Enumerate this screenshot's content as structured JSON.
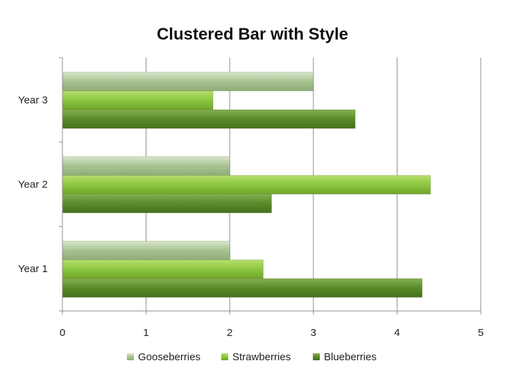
{
  "chart_data": {
    "type": "bar",
    "orientation": "horizontal",
    "title": "Clustered Bar with Style",
    "xlabel": "",
    "ylabel": "",
    "categories": [
      "Year 1",
      "Year 2",
      "Year 3"
    ],
    "xlim": [
      0,
      5
    ],
    "x_ticks": [
      "0",
      "1",
      "2",
      "3",
      "4",
      "5"
    ],
    "grid": true,
    "legend_position": "bottom",
    "series": [
      {
        "name": "Gooseberries",
        "values": [
          2,
          2,
          3
        ],
        "color": "#a6c48a"
      },
      {
        "name": "Strawberries",
        "values": [
          2.4,
          4.4,
          1.8
        ],
        "color": "#8cc63f"
      },
      {
        "name": "Blueberries",
        "values": [
          4.3,
          2.5,
          3.5
        ],
        "color": "#5a8a2a"
      }
    ]
  }
}
